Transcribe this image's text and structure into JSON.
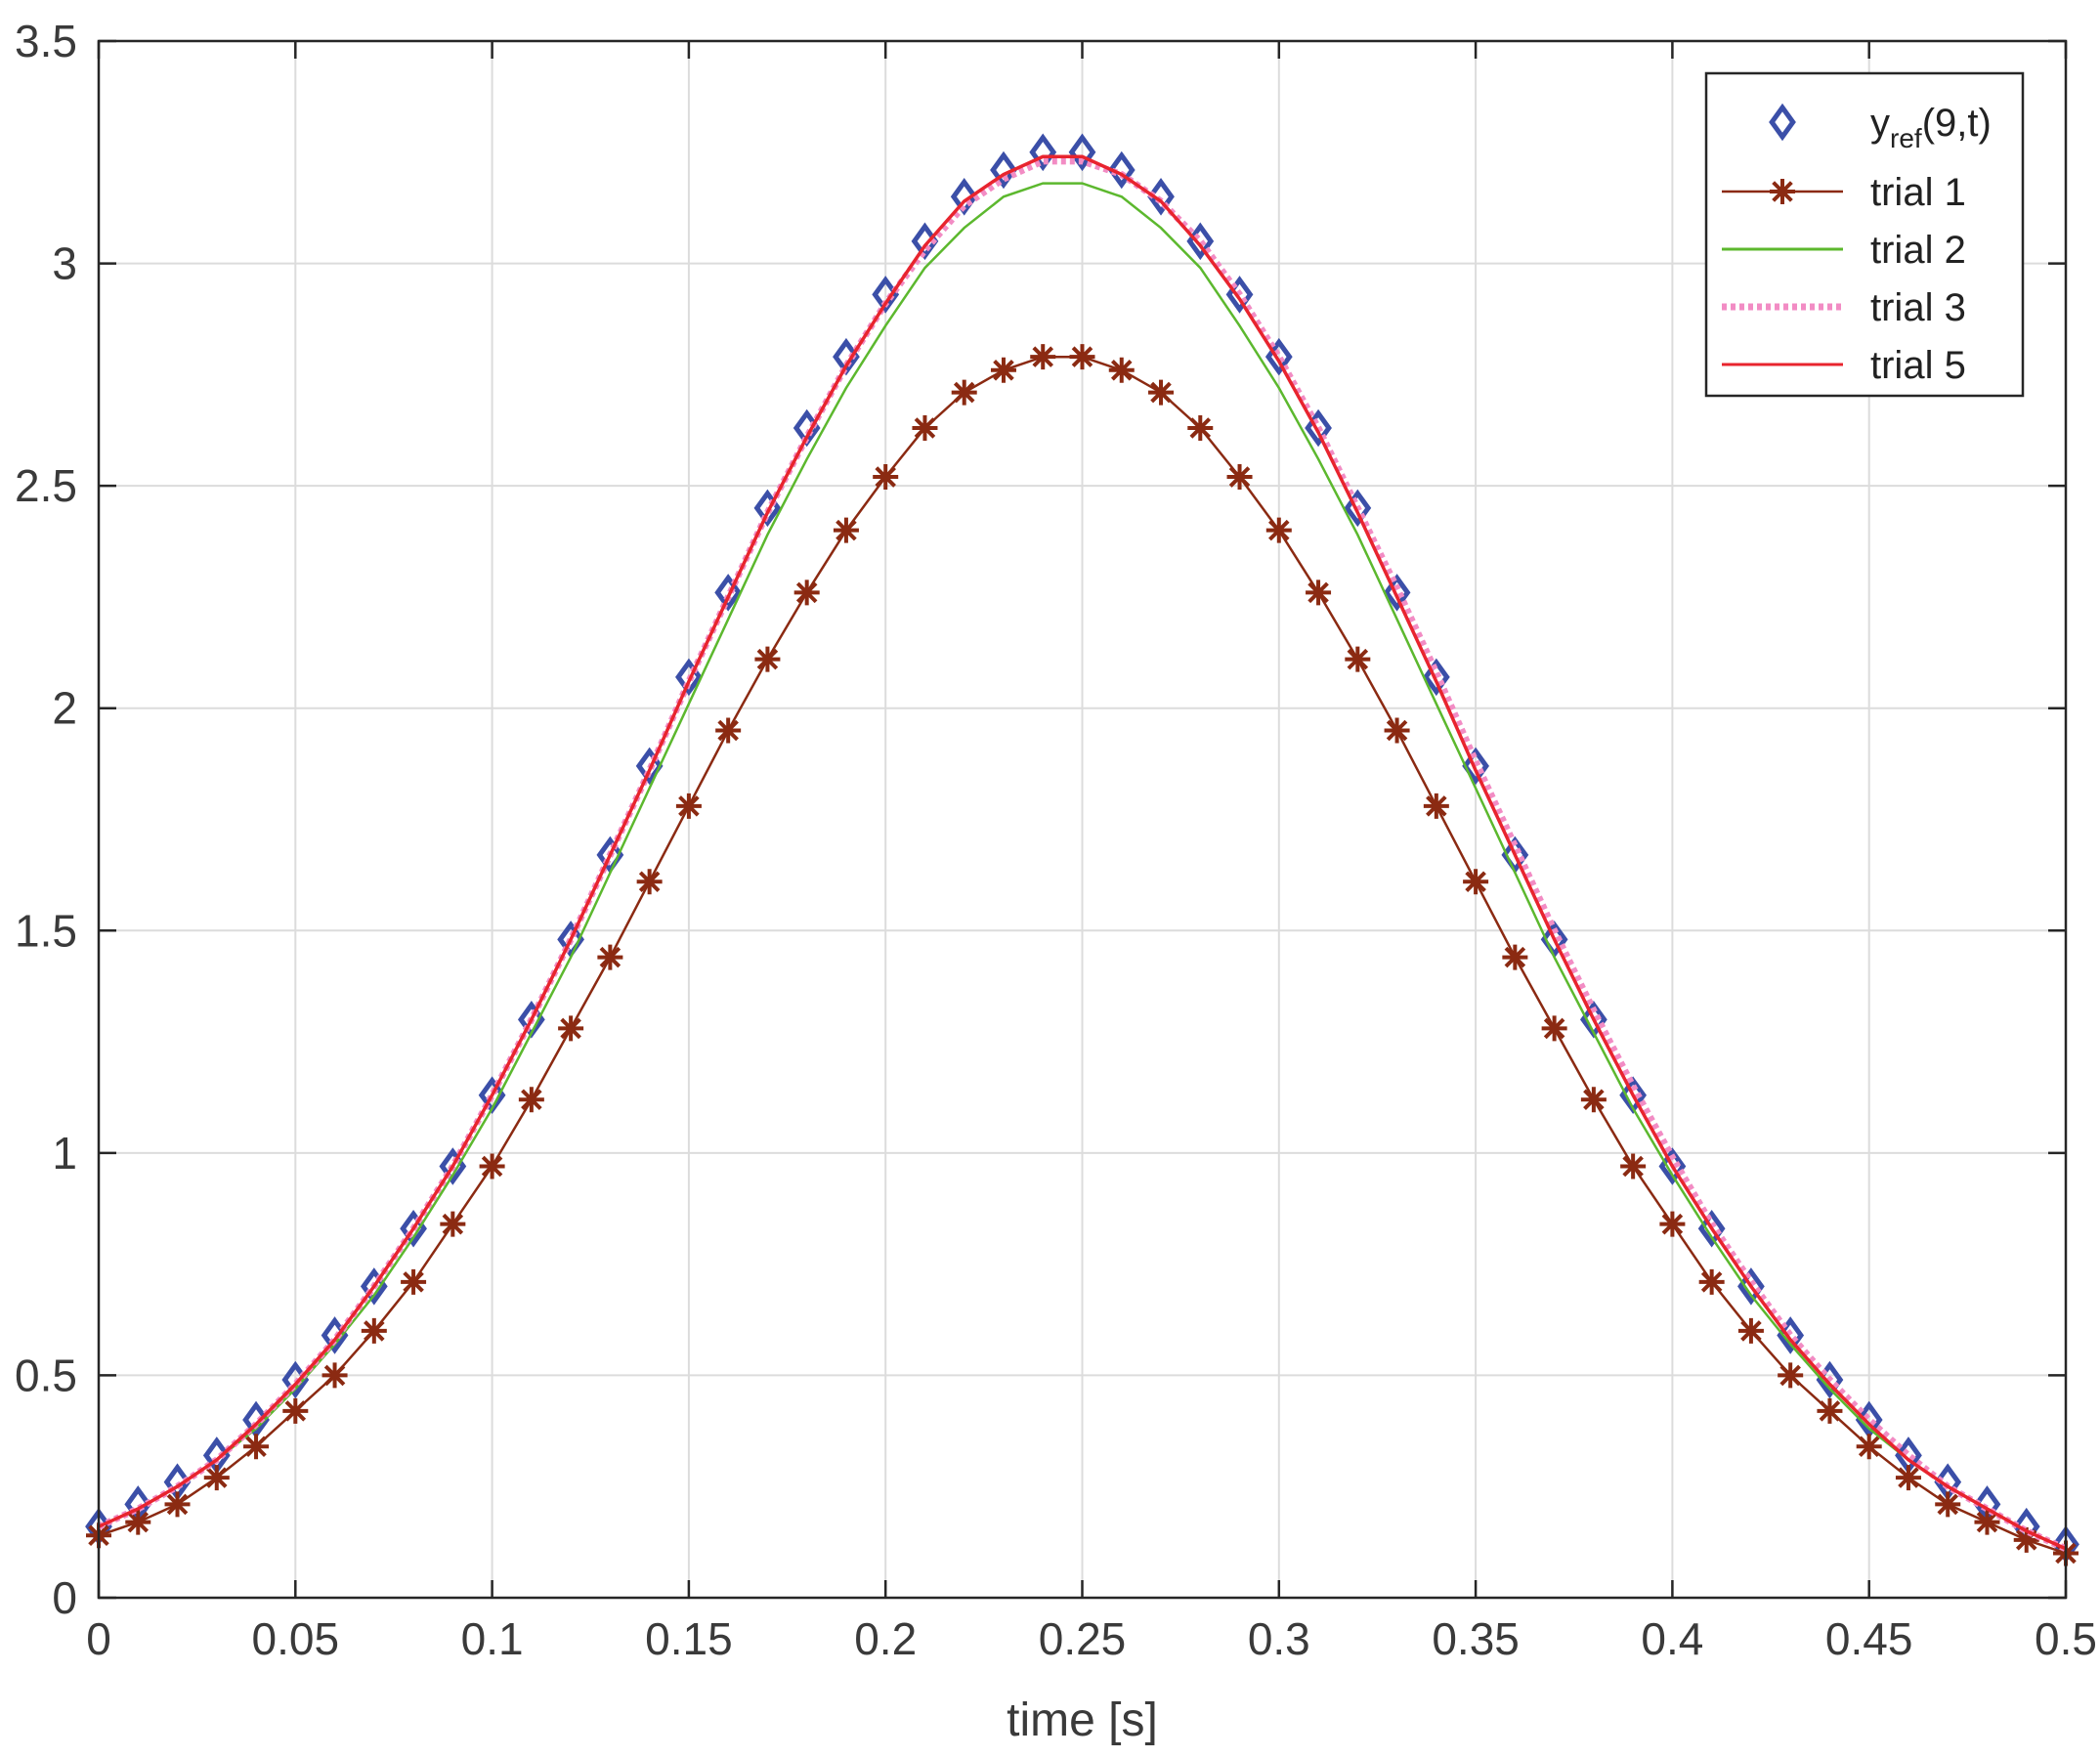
{
  "chart_data": {
    "type": "line",
    "title": "",
    "xlabel": "time [s]",
    "ylabel": "",
    "xlim": [
      0,
      0.5
    ],
    "ylim": [
      0,
      3.5
    ],
    "x_ticks": [
      0,
      0.05,
      0.1,
      0.15,
      0.2,
      0.25,
      0.3,
      0.35,
      0.4,
      0.45,
      0.5
    ],
    "x_tick_labels": [
      "0",
      "0.05",
      "0.1",
      "0.15",
      "0.2",
      "0.25",
      "0.3",
      "0.35",
      "0.4",
      "0.45",
      "0.5"
    ],
    "y_ticks": [
      0,
      0.5,
      1,
      1.5,
      2,
      2.5,
      3,
      3.5
    ],
    "y_tick_labels": [
      "0",
      "0.5",
      "1",
      "1.5",
      "2",
      "2.5",
      "3",
      "3.5"
    ],
    "grid": true,
    "legend_position": "top-right",
    "x": [
      0,
      0.01,
      0.02,
      0.03,
      0.04,
      0.05,
      0.06,
      0.07,
      0.08,
      0.09,
      0.1,
      0.11,
      0.12,
      0.13,
      0.14,
      0.15,
      0.16,
      0.17,
      0.18,
      0.19,
      0.2,
      0.21,
      0.22,
      0.23,
      0.24,
      0.25,
      0.26,
      0.27,
      0.28,
      0.29,
      0.3,
      0.31,
      0.32,
      0.33,
      0.34,
      0.35,
      0.36,
      0.37,
      0.38,
      0.39,
      0.4,
      0.41,
      0.42,
      0.43,
      0.44,
      0.45,
      0.46,
      0.47,
      0.48,
      0.49,
      0.5
    ],
    "series": [
      {
        "name": "y",
        "name_subscript": "ref",
        "name_suffix": "(9,t)",
        "style": "diamond-markers",
        "color": "#3b4fa8",
        "values": [
          0.16,
          0.21,
          0.26,
          0.32,
          0.4,
          0.49,
          0.59,
          0.7,
          0.83,
          0.97,
          1.13,
          1.3,
          1.48,
          1.67,
          1.87,
          2.07,
          2.26,
          2.45,
          2.63,
          2.79,
          2.93,
          3.05,
          3.15,
          3.21,
          3.25,
          3.25,
          3.21,
          3.15,
          3.05,
          2.93,
          2.79,
          2.63,
          2.45,
          2.26,
          2.07,
          1.87,
          1.67,
          1.48,
          1.3,
          1.13,
          0.97,
          0.83,
          0.7,
          0.59,
          0.49,
          0.4,
          0.32,
          0.26,
          0.21,
          0.16,
          0.12
        ]
      },
      {
        "name": "trial 1",
        "style": "line-asterisk",
        "color": "#8b2a12",
        "values": [
          0.14,
          0.17,
          0.21,
          0.27,
          0.34,
          0.42,
          0.5,
          0.6,
          0.71,
          0.84,
          0.97,
          1.12,
          1.28,
          1.44,
          1.61,
          1.78,
          1.95,
          2.11,
          2.26,
          2.4,
          2.52,
          2.63,
          2.71,
          2.76,
          2.79,
          2.79,
          2.76,
          2.71,
          2.63,
          2.52,
          2.4,
          2.26,
          2.11,
          1.95,
          1.78,
          1.61,
          1.44,
          1.28,
          1.12,
          0.97,
          0.84,
          0.71,
          0.6,
          0.5,
          0.42,
          0.34,
          0.27,
          0.21,
          0.17,
          0.13,
          0.1
        ]
      },
      {
        "name": "trial 2",
        "style": "line",
        "color": "#5cb82e",
        "values": [
          0.16,
          0.2,
          0.25,
          0.31,
          0.38,
          0.47,
          0.57,
          0.68,
          0.81,
          0.95,
          1.1,
          1.27,
          1.44,
          1.63,
          1.82,
          2.01,
          2.2,
          2.39,
          2.56,
          2.72,
          2.86,
          2.99,
          3.08,
          3.15,
          3.18,
          3.18,
          3.15,
          3.08,
          2.99,
          2.86,
          2.72,
          2.56,
          2.39,
          2.2,
          2.01,
          1.82,
          1.63,
          1.44,
          1.27,
          1.1,
          0.95,
          0.81,
          0.68,
          0.57,
          0.47,
          0.38,
          0.31,
          0.25,
          0.2,
          0.15,
          0.11
        ]
      },
      {
        "name": "trial 3",
        "style": "dotted",
        "color": "#f28cc4",
        "values": [
          0.16,
          0.2,
          0.25,
          0.31,
          0.39,
          0.48,
          0.58,
          0.7,
          0.83,
          0.97,
          1.13,
          1.3,
          1.48,
          1.67,
          1.86,
          2.06,
          2.25,
          2.44,
          2.61,
          2.77,
          2.91,
          3.03,
          3.13,
          3.19,
          3.23,
          3.23,
          3.2,
          3.14,
          3.05,
          2.93,
          2.79,
          2.63,
          2.45,
          2.27,
          2.08,
          1.88,
          1.69,
          1.5,
          1.32,
          1.15,
          0.99,
          0.84,
          0.71,
          0.59,
          0.49,
          0.4,
          0.32,
          0.25,
          0.2,
          0.15,
          0.11
        ]
      },
      {
        "name": "trial 5",
        "style": "line",
        "color": "#e8242e",
        "values": [
          0.16,
          0.2,
          0.25,
          0.31,
          0.39,
          0.48,
          0.58,
          0.7,
          0.83,
          0.97,
          1.13,
          1.3,
          1.48,
          1.67,
          1.86,
          2.06,
          2.25,
          2.44,
          2.61,
          2.77,
          2.91,
          3.04,
          3.14,
          3.2,
          3.24,
          3.24,
          3.2,
          3.14,
          3.04,
          2.92,
          2.78,
          2.62,
          2.44,
          2.25,
          2.06,
          1.86,
          1.67,
          1.48,
          1.3,
          1.13,
          0.97,
          0.83,
          0.7,
          0.58,
          0.48,
          0.39,
          0.31,
          0.25,
          0.2,
          0.15,
          0.11
        ]
      }
    ]
  }
}
